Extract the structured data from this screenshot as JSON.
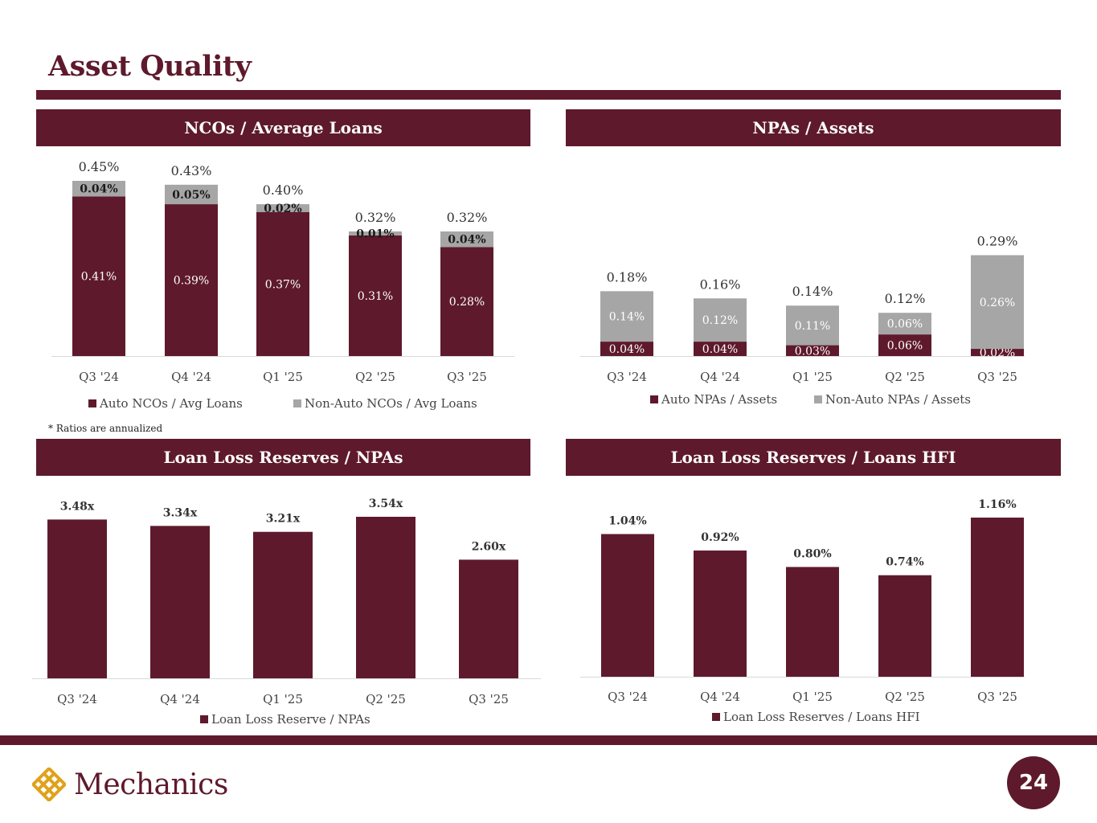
{
  "page": {
    "title": "Asset Quality",
    "footnote": "* Ratios are annualized",
    "page_number": "24",
    "logo_text": "Mechanics",
    "colors": {
      "brand": "#5e1a2c",
      "secondary": "#a6a6a6"
    }
  },
  "panels": [
    {
      "title": "NCOs / Average Loans"
    },
    {
      "title": "NPAs / Assets"
    },
    {
      "title": "Loan Loss Reserves / NPAs"
    },
    {
      "title": "Loan Loss Reserves / Loans HFI"
    }
  ],
  "chart_data": [
    {
      "type": "bar",
      "stacked": true,
      "title": "NCOs / Average Loans",
      "categories": [
        "Q3 '24",
        "Q4 '24",
        "Q1 '25",
        "Q2 '25",
        "Q3 '25"
      ],
      "series": [
        {
          "name": "Auto NCOs / Avg Loans",
          "values": [
            0.41,
            0.39,
            0.37,
            0.31,
            0.28
          ],
          "labels": [
            "0.41%",
            "0.39%",
            "0.37%",
            "0.31%",
            "0.28%"
          ],
          "color": "#5e1a2c"
        },
        {
          "name": "Non-Auto NCOs / Avg Loans",
          "values": [
            0.04,
            0.05,
            0.02,
            0.01,
            0.04
          ],
          "labels": [
            "0.04%",
            "0.05%",
            "0.02%",
            "0.01%",
            "0.04%"
          ],
          "color": "#a6a6a6"
        }
      ],
      "totals": [
        "0.45%",
        "0.43%",
        "0.40%",
        "0.32%",
        "0.32%"
      ],
      "total_values": [
        0.45,
        0.43,
        0.4,
        0.32,
        0.32
      ],
      "ylim": [
        0,
        0.45
      ],
      "legend": "bottom"
    },
    {
      "type": "bar",
      "stacked": true,
      "title": "NPAs / Assets",
      "categories": [
        "Q3 '24",
        "Q4 '24",
        "Q1 '25",
        "Q2 '25",
        "Q3 '25"
      ],
      "series": [
        {
          "name": "Auto NPAs /  Assets",
          "values": [
            0.04,
            0.04,
            0.03,
            0.06,
            0.02
          ],
          "labels": [
            "0.04%",
            "0.04%",
            "0.03%",
            "0.06%",
            "0.02%"
          ],
          "color": "#5e1a2c"
        },
        {
          "name": "Non-Auto NPAs /  Assets",
          "values": [
            0.14,
            0.12,
            0.11,
            0.06,
            0.26
          ],
          "labels": [
            "0.14%",
            "0.12%",
            "0.11%",
            "0.06%",
            "0.26%"
          ],
          "color": "#a6a6a6"
        }
      ],
      "totals": [
        "0.18%",
        "0.16%",
        "0.14%",
        "0.12%",
        "0.29%"
      ],
      "total_values": [
        0.18,
        0.16,
        0.14,
        0.12,
        0.29
      ],
      "ylim": [
        0,
        0.45
      ],
      "legend": "bottom"
    },
    {
      "type": "bar",
      "title": "Loan Loss Reserves / NPAs",
      "categories": [
        "Q3 '24",
        "Q4 '24",
        "Q1 '25",
        "Q2 '25",
        "Q3 '25"
      ],
      "series": [
        {
          "name": "Loan Loss Reserve / NPAs",
          "values": [
            3.48,
            3.34,
            3.21,
            3.54,
            2.6
          ],
          "labels": [
            "3.48x",
            "3.34x",
            "3.21x",
            "3.54x",
            "2.60x"
          ],
          "color": "#5e1a2c"
        }
      ],
      "ylim": [
        0,
        4.0
      ],
      "legend": "bottom"
    },
    {
      "type": "bar",
      "title": "Loan Loss Reserves / Loans HFI",
      "categories": [
        "Q3 '24",
        "Q4 '24",
        "Q1 '25",
        "Q2 '25",
        "Q3 '25"
      ],
      "series": [
        {
          "name": "Loan Loss Reserves / Loans HFI",
          "values": [
            1.04,
            0.92,
            0.8,
            0.74,
            1.16
          ],
          "labels": [
            "1.04%",
            "0.92%",
            "0.80%",
            "0.74%",
            "1.16%"
          ],
          "color": "#5e1a2c"
        }
      ],
      "ylim": [
        0,
        1.4
      ],
      "legend": "bottom"
    }
  ]
}
